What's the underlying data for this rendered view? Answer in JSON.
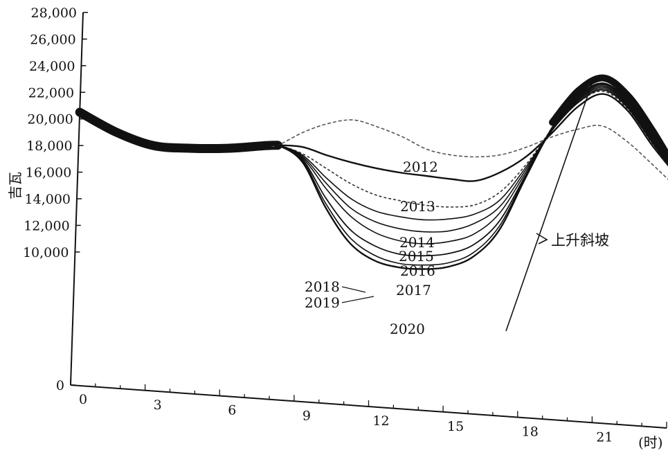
{
  "chart_data": {
    "type": "line",
    "ylabel": "吉瓦",
    "xunit": "(时)",
    "ylim": [
      0,
      28000
    ],
    "xlim": [
      0,
      24
    ],
    "yticks": [
      {
        "value": 0,
        "label": "0"
      },
      {
        "value": 10000,
        "label": "10,000"
      },
      {
        "value": 12000,
        "label": "12,000"
      },
      {
        "value": 14000,
        "label": "14,000"
      },
      {
        "value": 16000,
        "label": "16,000"
      },
      {
        "value": 18000,
        "label": "18,000"
      },
      {
        "value": 20000,
        "label": "20,000"
      },
      {
        "value": 22000,
        "label": "22,000"
      },
      {
        "value": 24000,
        "label": "24,000"
      },
      {
        "value": 26000,
        "label": "26,000"
      },
      {
        "value": 28000,
        "label": "28,000"
      }
    ],
    "xticks": [
      {
        "value": 0,
        "label": "0"
      },
      {
        "value": 3,
        "label": "3"
      },
      {
        "value": 6,
        "label": "6"
      },
      {
        "value": 9,
        "label": "9"
      },
      {
        "value": 12,
        "label": "12"
      },
      {
        "value": 15,
        "label": "15"
      },
      {
        "value": 18,
        "label": "18"
      },
      {
        "value": 21,
        "label": "21"
      }
    ],
    "series": [
      {
        "name": "2012",
        "color": "#555555",
        "dash": "5 3",
        "points": [
          [
            0,
            20500
          ],
          [
            1.5,
            19200
          ],
          [
            3,
            18400
          ],
          [
            4.5,
            18400
          ],
          [
            6,
            18600
          ],
          [
            7.5,
            19000
          ],
          [
            8,
            19100
          ],
          [
            9,
            20200
          ],
          [
            10,
            21000
          ],
          [
            11,
            21400
          ],
          [
            12,
            21000
          ],
          [
            13,
            20400
          ],
          [
            14,
            19600
          ],
          [
            15,
            19300
          ],
          [
            16,
            19300
          ],
          [
            17,
            19600
          ],
          [
            18,
            20300
          ],
          [
            19,
            21200
          ],
          [
            20,
            21900
          ],
          [
            21,
            22300
          ],
          [
            22,
            21300
          ],
          [
            23,
            19800
          ],
          [
            24,
            18200
          ]
        ]
      },
      {
        "name": "2013",
        "color": "#111111",
        "width": 2.4,
        "points": [
          [
            0,
            20500
          ],
          [
            1.5,
            19200
          ],
          [
            3,
            18400
          ],
          [
            4.5,
            18400
          ],
          [
            6,
            18600
          ],
          [
            7.5,
            19000
          ],
          [
            8,
            19100
          ],
          [
            9,
            19100
          ],
          [
            10,
            18600
          ],
          [
            11,
            18200
          ],
          [
            12,
            17900
          ],
          [
            13,
            17700
          ],
          [
            14,
            17600
          ],
          [
            15,
            17500
          ],
          [
            16,
            17500
          ],
          [
            17,
            18300
          ],
          [
            18,
            19600
          ],
          [
            19,
            21500
          ],
          [
            20,
            23600
          ],
          [
            21,
            24700
          ],
          [
            22,
            23600
          ],
          [
            23,
            21200
          ],
          [
            24,
            19100
          ]
        ]
      },
      {
        "name": "2014",
        "color": "#333333",
        "dash": "4 3",
        "points": [
          [
            0,
            20500
          ],
          [
            1.5,
            19200
          ],
          [
            3,
            18400
          ],
          [
            4.5,
            18400
          ],
          [
            6,
            18600
          ],
          [
            7.5,
            19000
          ],
          [
            8,
            19100
          ],
          [
            9,
            18600
          ],
          [
            10,
            17600
          ],
          [
            11,
            16600
          ],
          [
            12,
            15900
          ],
          [
            13,
            15600
          ],
          [
            14,
            15400
          ],
          [
            15,
            15400
          ],
          [
            16,
            15700
          ],
          [
            17,
            16800
          ],
          [
            18,
            19000
          ],
          [
            19,
            21800
          ],
          [
            20,
            23900
          ],
          [
            21,
            24900
          ],
          [
            22,
            23700
          ],
          [
            23,
            21300
          ],
          [
            24,
            19100
          ]
        ]
      },
      {
        "name": "2015",
        "color": "#111111",
        "points": [
          [
            0,
            20500
          ],
          [
            1.5,
            19200
          ],
          [
            3,
            18400
          ],
          [
            4.5,
            18400
          ],
          [
            6,
            18600
          ],
          [
            7.5,
            19000
          ],
          [
            8,
            19100
          ],
          [
            9,
            18500
          ],
          [
            10,
            16900
          ],
          [
            11,
            15500
          ],
          [
            12,
            14700
          ],
          [
            13,
            14400
          ],
          [
            14,
            14300
          ],
          [
            15,
            14500
          ],
          [
            16,
            15000
          ],
          [
            17,
            16200
          ],
          [
            18,
            18800
          ],
          [
            19,
            21700
          ],
          [
            20,
            23900
          ],
          [
            21,
            25000
          ],
          [
            22,
            23800
          ],
          [
            23,
            21400
          ],
          [
            24,
            19100
          ]
        ]
      },
      {
        "name": "2016",
        "color": "#111111",
        "points": [
          [
            0,
            20500
          ],
          [
            1.5,
            19200
          ],
          [
            3,
            18400
          ],
          [
            4.5,
            18400
          ],
          [
            6,
            18600
          ],
          [
            7.5,
            19000
          ],
          [
            8,
            19100
          ],
          [
            9,
            18400
          ],
          [
            10,
            16500
          ],
          [
            11,
            14800
          ],
          [
            12,
            13900
          ],
          [
            13,
            13500
          ],
          [
            14,
            13400
          ],
          [
            15,
            13600
          ],
          [
            16,
            14300
          ],
          [
            17,
            15700
          ],
          [
            18,
            18600
          ],
          [
            19,
            21700
          ],
          [
            20,
            24000
          ],
          [
            21,
            25100
          ],
          [
            22,
            23900
          ],
          [
            23,
            21500
          ],
          [
            24,
            19100
          ]
        ]
      },
      {
        "name": "2017",
        "color": "#111111",
        "points": [
          [
            0,
            20500
          ],
          [
            1.5,
            19200
          ],
          [
            3,
            18400
          ],
          [
            4.5,
            18400
          ],
          [
            6,
            18600
          ],
          [
            7.5,
            19000
          ],
          [
            8,
            19100
          ],
          [
            9,
            18300
          ],
          [
            10,
            16100
          ],
          [
            11,
            14200
          ],
          [
            12,
            13100
          ],
          [
            13,
            12600
          ],
          [
            14,
            12500
          ],
          [
            15,
            12800
          ],
          [
            16,
            13500
          ],
          [
            17,
            15200
          ],
          [
            18,
            18400
          ],
          [
            19,
            21700
          ],
          [
            20,
            24100
          ],
          [
            21,
            25200
          ],
          [
            22,
            24000
          ],
          [
            23,
            21600
          ],
          [
            24,
            19100
          ]
        ]
      },
      {
        "name": "2018",
        "color": "#111111",
        "width": 1.8,
        "points": [
          [
            0,
            20500
          ],
          [
            1.5,
            19200
          ],
          [
            3,
            18400
          ],
          [
            4.5,
            18400
          ],
          [
            6,
            18600
          ],
          [
            7.5,
            19000
          ],
          [
            8,
            19100
          ],
          [
            9,
            18200
          ],
          [
            10,
            15400
          ],
          [
            11,
            13200
          ],
          [
            12,
            12100
          ],
          [
            13,
            11600
          ],
          [
            14,
            11600
          ],
          [
            15,
            11900
          ],
          [
            16,
            12700
          ],
          [
            17,
            14600
          ],
          [
            18,
            18200
          ],
          [
            19,
            21800
          ],
          [
            20,
            24200
          ],
          [
            21,
            25300
          ],
          [
            22,
            24100
          ],
          [
            23,
            21700
          ],
          [
            24,
            19100
          ]
        ]
      },
      {
        "name": "2019",
        "color": "#111111",
        "points": [
          [
            0,
            20500
          ],
          [
            1.5,
            19200
          ],
          [
            3,
            18400
          ],
          [
            4.5,
            18400
          ],
          [
            6,
            18600
          ],
          [
            7.5,
            19000
          ],
          [
            8,
            19100
          ],
          [
            9,
            18100
          ],
          [
            10,
            15000
          ],
          [
            11,
            12600
          ],
          [
            12,
            11400
          ],
          [
            13,
            10900
          ],
          [
            14,
            10900
          ],
          [
            15,
            11200
          ],
          [
            16,
            12100
          ],
          [
            17,
            14200
          ],
          [
            18,
            18100
          ],
          [
            19,
            21800
          ],
          [
            20,
            24300
          ],
          [
            21,
            25400
          ],
          [
            22,
            24200
          ],
          [
            23,
            21800
          ],
          [
            24,
            19100
          ]
        ]
      },
      {
        "name": "2020",
        "color": "#111111",
        "width": 2.4,
        "points": [
          [
            0,
            20500
          ],
          [
            1.5,
            19200
          ],
          [
            3,
            18400
          ],
          [
            4.5,
            18400
          ],
          [
            6,
            18600
          ],
          [
            7.5,
            19000
          ],
          [
            8,
            19100
          ],
          [
            9,
            18000
          ],
          [
            10,
            14700
          ],
          [
            11,
            12200
          ],
          [
            12,
            11000
          ],
          [
            13,
            10600
          ],
          [
            14,
            10600
          ],
          [
            15,
            10900
          ],
          [
            16,
            11800
          ],
          [
            17,
            13900
          ],
          [
            18,
            18000
          ],
          [
            19,
            21900
          ],
          [
            20,
            24400
          ],
          [
            21,
            25500
          ],
          [
            22,
            24300
          ],
          [
            23,
            21900
          ],
          [
            24,
            19100
          ]
        ]
      }
    ],
    "annotation": {
      "text": "上升斜坡"
    }
  }
}
